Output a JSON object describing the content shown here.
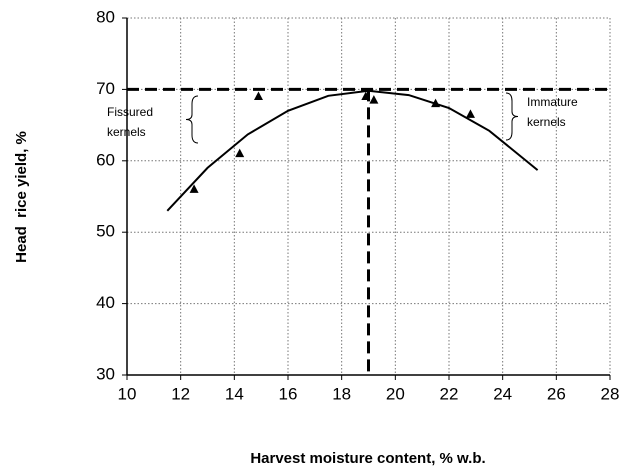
{
  "chart_data": {
    "type": "scatter",
    "xlabel": "Harvest moisture content, % w.b.",
    "ylabel": "Head  rice yield, %",
    "xlim": [
      10,
      28
    ],
    "xticks": [
      10,
      12,
      14,
      16,
      18,
      20,
      22,
      24,
      26,
      28
    ],
    "ylim": [
      30,
      80
    ],
    "yticks": [
      30,
      40,
      50,
      60,
      70,
      80
    ],
    "grid": true,
    "series": [
      {
        "type": "scatter",
        "color": "#000000",
        "x": [
          12.5,
          14.2,
          14.9,
          18.9,
          19.2,
          21.5,
          22.8
        ],
        "values": [
          56,
          61,
          69,
          69,
          68.5,
          68,
          66.5
        ]
      },
      {
        "type": "line",
        "color": "#000000",
        "x": [
          11.5,
          13,
          14.5,
          16,
          17.5,
          19,
          20.5,
          22,
          23.5,
          25.3
        ],
        "values": [
          53,
          59,
          63.7,
          67,
          69.1,
          69.8,
          69.2,
          67.4,
          64.2,
          58.7
        ]
      }
    ],
    "hline": 70,
    "vline": 19,
    "annotations": [
      {
        "lines": [
          "Fissured",
          "kernels"
        ]
      },
      {
        "lines": [
          "Immature",
          "kernels"
        ]
      }
    ]
  }
}
